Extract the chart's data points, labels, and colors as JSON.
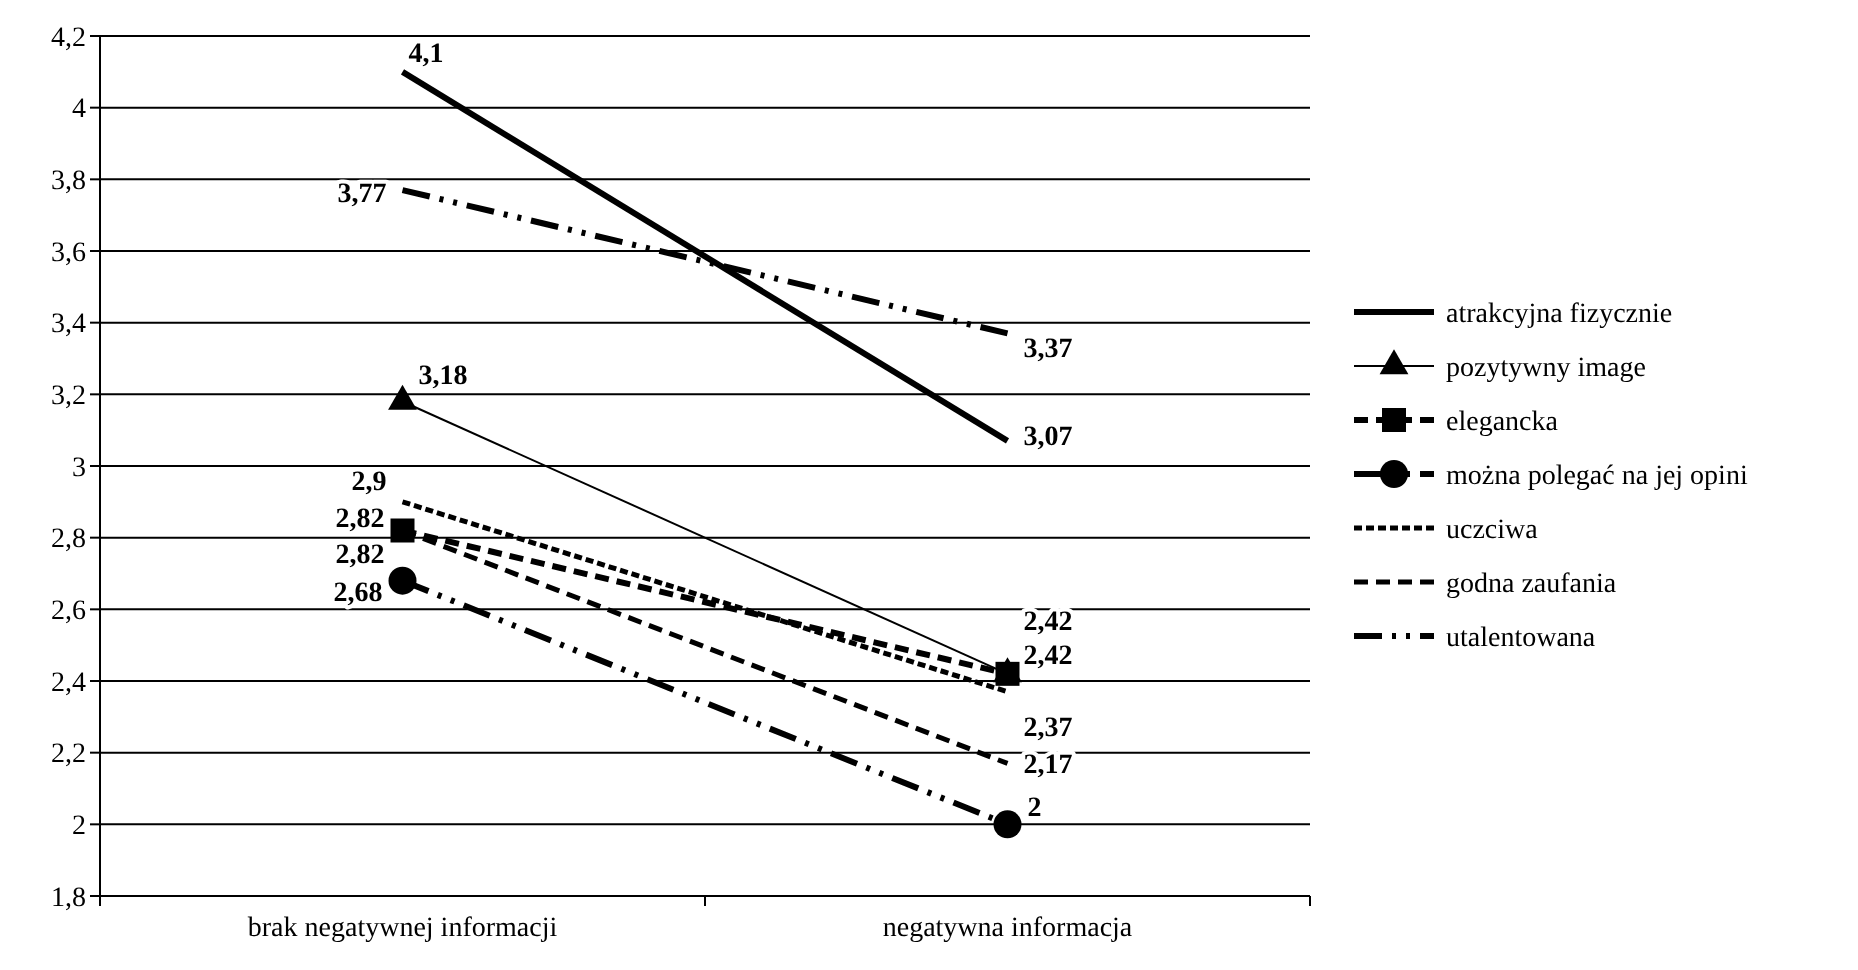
{
  "chart_data": {
    "type": "line",
    "categories": [
      "brak negatywnej informacji",
      "negatywna informacja"
    ],
    "ylim": [
      1.8,
      4.2
    ],
    "yticks": [
      {
        "value": 1.8,
        "label": "1,8"
      },
      {
        "value": 2,
        "label": "2"
      },
      {
        "value": 2.2,
        "label": "2,2"
      },
      {
        "value": 2.4,
        "label": "2,4"
      },
      {
        "value": 2.6,
        "label": "2,6"
      },
      {
        "value": 2.8,
        "label": "2,8"
      },
      {
        "value": 3,
        "label": "3"
      },
      {
        "value": 3.2,
        "label": "3,2"
      },
      {
        "value": 3.4,
        "label": "3,4"
      },
      {
        "value": 3.6,
        "label": "3,6"
      },
      {
        "value": 3.8,
        "label": "3,8"
      },
      {
        "value": 4,
        "label": "4"
      },
      {
        "value": 4.2,
        "label": "4,2"
      }
    ],
    "grid": "y",
    "legend": "right",
    "series": [
      {
        "name": "atrakcyjna fizycznie",
        "color": "#000000",
        "values": [
          4.1,
          3.07
        ],
        "value_labels": [
          "4,1",
          "3,07"
        ],
        "line_style": "solid",
        "marker": "none"
      },
      {
        "name": "pozytywny image",
        "color": "#000000",
        "values": [
          3.18,
          2.42
        ],
        "value_labels": [
          "3,18",
          "2,42"
        ],
        "line_style": "solid",
        "marker": "triangle"
      },
      {
        "name": "elegancka",
        "color": "#000000",
        "values": [
          2.82,
          2.42
        ],
        "value_labels": [
          "2,82",
          "2,42"
        ],
        "line_style": "dashed",
        "marker": "square"
      },
      {
        "name": "można polegać na jej opini",
        "color": "#000000",
        "values": [
          2.68,
          2
        ],
        "value_labels": [
          "2,68",
          "2"
        ],
        "line_style": "dashdot",
        "marker": "circle"
      },
      {
        "name": "uczciwa",
        "color": "#000000",
        "values": [
          2.9,
          2.37
        ],
        "value_labels": [
          "2,9",
          "2,37"
        ],
        "line_style": "dotted",
        "marker": "none"
      },
      {
        "name": "godna zaufania",
        "color": "#000000",
        "values": [
          2.82,
          2.17
        ],
        "value_labels": [
          "2,82",
          "2,17"
        ],
        "line_style": "dashed",
        "marker": "none"
      },
      {
        "name": "utalentowana",
        "color": "#000000",
        "values": [
          3.77,
          3.37
        ],
        "value_labels": [
          "3,77",
          "3,37"
        ],
        "line_style": "dashdot",
        "marker": "none"
      }
    ]
  }
}
